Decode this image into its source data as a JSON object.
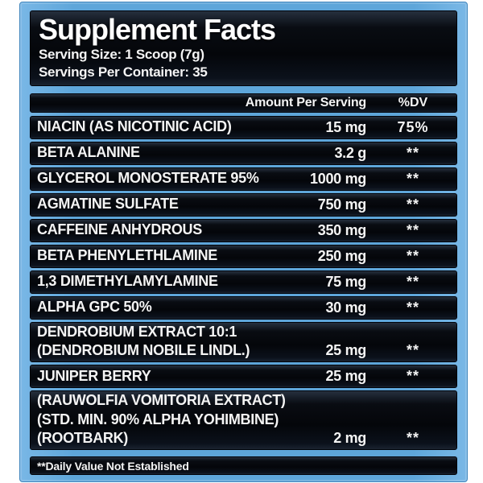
{
  "label": {
    "title": "Supplement Facts",
    "serving_size": "Serving Size: 1 Scoop (7g)",
    "servings_per_container": "Servings Per Container: 35",
    "columns": {
      "amount": "Amount Per Serving",
      "dv": "%DV"
    },
    "rows": [
      {
        "name": "NIACIN (AS NICOTINIC ACID)",
        "amount": "15 mg",
        "dv": "75%"
      },
      {
        "name": "BETA ALANINE",
        "amount": "3.2 g",
        "dv": "**"
      },
      {
        "name": "GLYCEROL MONOSTERATE 95%",
        "amount": "1000 mg",
        "dv": "**"
      },
      {
        "name": "AGMATINE SULFATE",
        "amount": "750 mg",
        "dv": "**"
      },
      {
        "name": "CAFFEINE ANHYDROUS",
        "amount": "350 mg",
        "dv": "**"
      },
      {
        "name": "BETA PHENYLETHLAMINE",
        "amount": "250 mg",
        "dv": "**"
      },
      {
        "name": "1,3 DIMETHYLAMYLAMINE",
        "amount": "75 mg",
        "dv": "**"
      },
      {
        "name": "ALPHA GPC 50%",
        "amount": "30 mg",
        "dv": "**"
      },
      {
        "name": "DENDROBIUM EXTRACT 10:1\n(DENDROBIUM NOBILE LINDL.)",
        "amount": "25 mg",
        "dv": "**"
      },
      {
        "name": "JUNIPER BERRY",
        "amount": "25 mg",
        "dv": "**"
      },
      {
        "name": "(RAUWOLFIA VOMITORIA EXTRACT)\n(STD. MIN. 90% ALPHA YOHIMBINE)\n(ROOTBARK)",
        "amount": "2 mg",
        "dv": "**"
      }
    ],
    "footnote": "**Daily Value Not Established",
    "colors": {
      "frame_blue": "#5ea6da",
      "panel_black": "#04060a",
      "text": "#f4f4f4"
    }
  }
}
